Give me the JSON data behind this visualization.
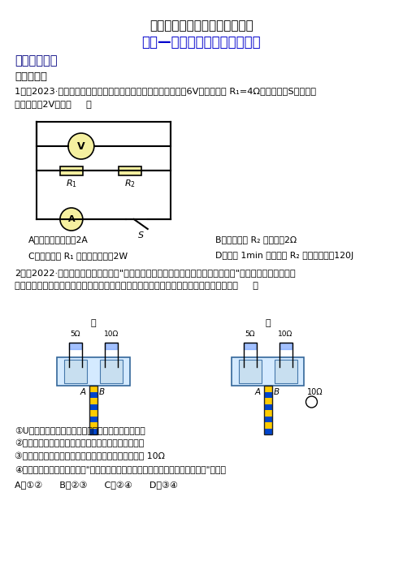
{
  "title1": "浙教版九年级上册第三章第六节",
  "title2": "电能—电功率与焦耳定律的计算",
  "section_label": "【同步练习】",
  "subsection": "一、选择题",
  "q1_text": "1．（2023·河北保定中考）在如图所示的电路中，电源电压恒为6V，定值电阻 R₁=4Ω，闭合开关S后，电压",
  "q1_text2": "表的示数为2V，则（     ）",
  "q1_a": "A．电路中的电流为2A",
  "q1_b": "B．定值电阻 R₂ 的阻值为2Ω",
  "q1_c": "C．定值电阻 R₁ 消耗的电功率为2W",
  "q1_d": "D．通电 1min 定值电阻 R₂ 产生的热量为120J",
  "q2_text": "2．（2022·内蒙古通辽中考真题）在\"探充电流通过导体产生的热量与哪些因素有关\"的实验中，某同学采用",
  "q2_text2": "了如图甲、乙所示的实验装置（两个透明容器中封闭着等量的空气），下列说法正确的是（     ）",
  "q2_opt1": "①U形管中液面高度变化主要是由液体热胀冷缩引起的",
  "q2_opt2": "②图甲装置探究电流通过导体产生的热量与电阻的关系",
  "q2_opt3": "③图乙实验过程中右边透明容器中电阻丝阻值应该等于 10Ω",
  "q2_opt4": "④用图甲中的实验结论能解释\"电炉丝热得发红而与电炉丝相连的导线几乎不发热\"的现象",
  "q2_choices": "A．①②      B．②③      C．②④      D．③④",
  "bg_color": "#ffffff",
  "title1_color": "#000000",
  "title2_color": "#0000cc",
  "text_color": "#000000"
}
